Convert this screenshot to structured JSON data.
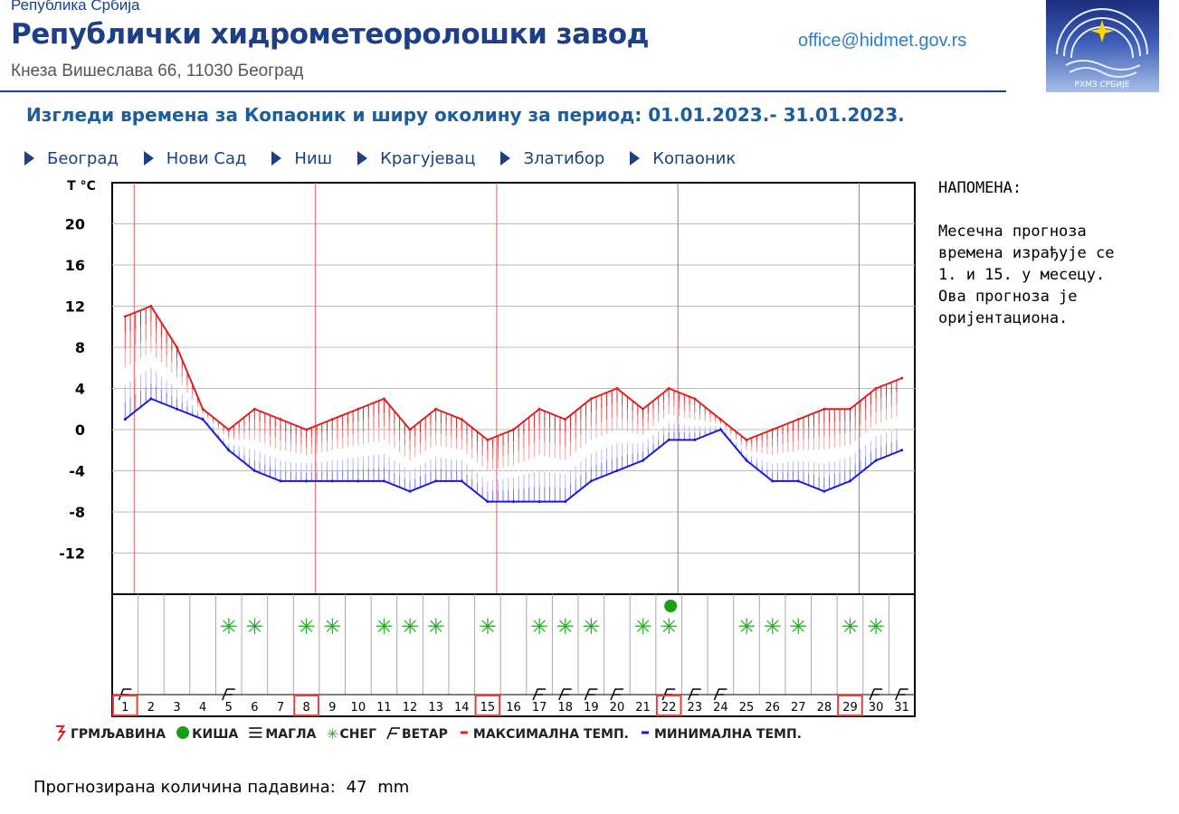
{
  "header": {
    "country": "Република Србија",
    "institution": "Републички хидрометеоролошки завод",
    "address": "Кнеза Вишеслава 66, 11030 Београд",
    "email": "office@hidmet.gov.rs",
    "logo_text": "РХМЗ СРБИЈЕ"
  },
  "page_title": "Изгледи времена за Копаоник и ширу околину за период: 01.01.2023.- 31.01.2023.",
  "nav": [
    {
      "label": "Београд"
    },
    {
      "label": "Нови Сад"
    },
    {
      "label": "Ниш"
    },
    {
      "label": "Крагујевац"
    },
    {
      "label": "Златибор"
    },
    {
      "label": "Копаоник"
    }
  ],
  "note": {
    "title": "НАПОМЕНА:",
    "lines": [
      "Месечна прогноза",
      "времена израђује се",
      "1. и 15. у месецу.",
      "Ова прогноза је",
      "оријентациона."
    ]
  },
  "precipitation": {
    "label": "Прогнозирана количина падавина:",
    "value": "47",
    "unit": "mm"
  },
  "colors": {
    "max": "#dd2020",
    "min": "#1a1adc",
    "snow": "#22aa22",
    "rain": "#16a016",
    "grid": "#bbbbbb",
    "week_line": "#e06060"
  },
  "chart_data": {
    "type": "line",
    "ylabel": "T °C",
    "y_ticks": [
      20,
      16,
      12,
      8,
      4,
      0,
      -4,
      -8,
      -12
    ],
    "ylim": [
      -16,
      24
    ],
    "x": [
      1,
      2,
      3,
      4,
      5,
      6,
      7,
      8,
      9,
      10,
      11,
      12,
      13,
      14,
      15,
      16,
      17,
      18,
      19,
      20,
      21,
      22,
      23,
      24,
      25,
      26,
      27,
      28,
      29,
      30,
      31
    ],
    "highlight_days": [
      1,
      8,
      15,
      22,
      29
    ],
    "series": [
      {
        "name": "МАКСИМАЛНА ТЕМП.",
        "values": [
          11,
          12,
          8,
          2,
          0,
          2,
          1,
          0,
          1,
          2,
          3,
          0,
          2,
          1,
          -1,
          0,
          2,
          1,
          3,
          4,
          2,
          4,
          3,
          1,
          -1,
          0,
          1,
          2,
          2,
          4,
          5
        ]
      },
      {
        "name": "МИНИМАЛНА ТЕМП.",
        "values": [
          1,
          3,
          2,
          1,
          -2,
          -4,
          -5,
          -5,
          -5,
          -5,
          -5,
          -6,
          -5,
          -5,
          -7,
          -7,
          -7,
          -7,
          -5,
          -4,
          -3,
          -1,
          -1,
          0,
          -3,
          -5,
          -5,
          -6,
          -5,
          -3,
          -2
        ]
      }
    ],
    "weather": {
      "snow_days": [
        5,
        6,
        8,
        9,
        11,
        12,
        13,
        15,
        17,
        18,
        19,
        21,
        22,
        25,
        26,
        27,
        29,
        30
      ],
      "rain_days": [
        22
      ],
      "wind_days": [
        1,
        5,
        17,
        18,
        19,
        20,
        22,
        23,
        24,
        30,
        31
      ]
    },
    "legend": [
      {
        "key": "thunder",
        "label": "ГРМЉАВИНА"
      },
      {
        "key": "rain",
        "label": "КИША"
      },
      {
        "key": "fog",
        "label": "МАГЛА"
      },
      {
        "key": "snow",
        "label": "СНЕГ"
      },
      {
        "key": "wind",
        "label": "ВЕТАР"
      },
      {
        "key": "max",
        "label": "МАКСИМАЛНА ТЕМП."
      },
      {
        "key": "min",
        "label": "МИНИМАЛНА ТЕМП."
      }
    ]
  }
}
